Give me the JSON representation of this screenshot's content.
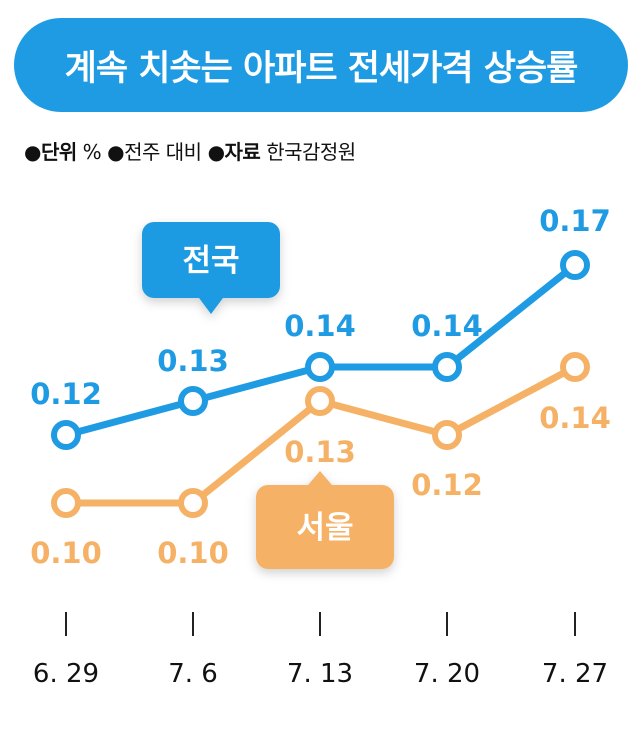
{
  "title": "계속 치솟는 아파트 전세가격 상승률",
  "meta": {
    "bullet": "●",
    "unit_label": "단위",
    "unit_value": "%",
    "basis": "전주 대비",
    "source_label": "자료",
    "source_value": "한국감정원"
  },
  "colors": {
    "accent": "#1e9be3",
    "national": "#1e9be3",
    "seoul": "#f5b266",
    "seoul_label_bg": "#f5b266"
  },
  "chart_data": {
    "type": "line",
    "categories": [
      "6. 29",
      "7. 6",
      "7. 13",
      "7. 20",
      "7. 27"
    ],
    "series": [
      {
        "name": "전국",
        "values": [
          0.12,
          0.13,
          0.14,
          0.14,
          0.17
        ],
        "labels": [
          "0.12",
          "0.13",
          "0.14",
          "0.14",
          "0.17"
        ]
      },
      {
        "name": "서울",
        "values": [
          0.1,
          0.1,
          0.13,
          0.12,
          0.14
        ],
        "labels": [
          "0.10",
          "0.10",
          "0.13",
          "0.12",
          "0.14"
        ]
      }
    ],
    "title": "계속 치솟는 아파트 전세가격 상승률",
    "xlabel": "",
    "ylabel": "",
    "grid": false
  }
}
